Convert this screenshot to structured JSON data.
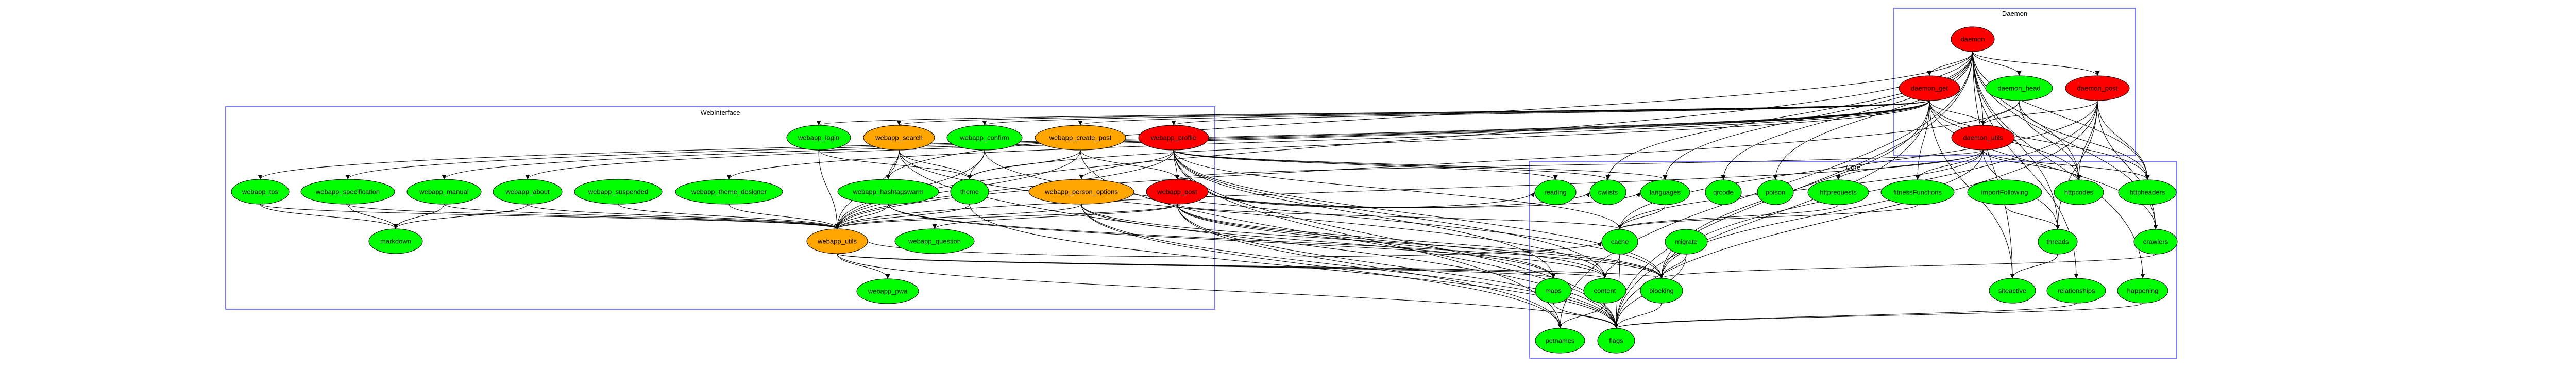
{
  "colors": {
    "red": "#ff0000",
    "green": "#00ff00",
    "orange": "#ffa500",
    "cluster_border": "#5050ff",
    "edge": "#000000"
  },
  "clusters": [
    {
      "id": "daemon",
      "label": "Daemon"
    },
    {
      "id": "web",
      "label": "WebInterface"
    },
    {
      "id": "core",
      "label": "Core"
    }
  ],
  "nodes": [
    {
      "id": "daemon",
      "label": "daemon",
      "fill": "red",
      "cluster": "daemon"
    },
    {
      "id": "daemon_get",
      "label": "daemon_get",
      "fill": "red",
      "cluster": "daemon"
    },
    {
      "id": "daemon_head",
      "label": "daemon_head",
      "fill": "green",
      "cluster": "daemon"
    },
    {
      "id": "daemon_post",
      "label": "daemon_post",
      "fill": "red",
      "cluster": "daemon"
    },
    {
      "id": "daemon_utils",
      "label": "daemon_utils",
      "fill": "red",
      "cluster": "daemon"
    },
    {
      "id": "webapp_login",
      "label": "webapp_login",
      "fill": "green",
      "cluster": "web"
    },
    {
      "id": "webapp_search",
      "label": "webapp_search",
      "fill": "orange",
      "cluster": "web"
    },
    {
      "id": "webapp_confirm",
      "label": "webapp_confirm",
      "fill": "green",
      "cluster": "web"
    },
    {
      "id": "webapp_create_post",
      "label": "webapp_create_post",
      "fill": "orange",
      "cluster": "web"
    },
    {
      "id": "webapp_profile",
      "label": "webapp_profile",
      "fill": "red",
      "cluster": "web"
    },
    {
      "id": "webapp_tos",
      "label": "webapp_tos",
      "fill": "green",
      "cluster": "web"
    },
    {
      "id": "webapp_specification",
      "label": "webapp_specification",
      "fill": "green",
      "cluster": "web"
    },
    {
      "id": "webapp_manual",
      "label": "webapp_manual",
      "fill": "green",
      "cluster": "web"
    },
    {
      "id": "webapp_about",
      "label": "webapp_about",
      "fill": "green",
      "cluster": "web"
    },
    {
      "id": "webapp_suspended",
      "label": "webapp_suspended",
      "fill": "green",
      "cluster": "web"
    },
    {
      "id": "webapp_theme_designer",
      "label": "webapp_theme_designer",
      "fill": "green",
      "cluster": "web"
    },
    {
      "id": "webapp_hashtagswarm",
      "label": "webapp_hashtagswarm",
      "fill": "green",
      "cluster": "web"
    },
    {
      "id": "theme",
      "label": "theme",
      "fill": "green",
      "cluster": "web"
    },
    {
      "id": "webapp_person_options",
      "label": "webapp_person_options",
      "fill": "orange",
      "cluster": "web"
    },
    {
      "id": "webapp_post",
      "label": "webapp_post",
      "fill": "red",
      "cluster": "web"
    },
    {
      "id": "markdown",
      "label": "markdown",
      "fill": "green",
      "cluster": "web"
    },
    {
      "id": "webapp_utils",
      "label": "webapp_utils",
      "fill": "orange",
      "cluster": "web"
    },
    {
      "id": "webapp_question",
      "label": "webapp_question",
      "fill": "green",
      "cluster": "web"
    },
    {
      "id": "webapp_pwa",
      "label": "webapp_pwa",
      "fill": "green",
      "cluster": "web"
    },
    {
      "id": "reading",
      "label": "reading",
      "fill": "green",
      "cluster": "core"
    },
    {
      "id": "cwlists",
      "label": "cwlists",
      "fill": "green",
      "cluster": "core"
    },
    {
      "id": "languages",
      "label": "languages",
      "fill": "green",
      "cluster": "core"
    },
    {
      "id": "qrcode",
      "label": "qrcode",
      "fill": "green",
      "cluster": "core"
    },
    {
      "id": "poison",
      "label": "poison",
      "fill": "green",
      "cluster": "core"
    },
    {
      "id": "httprequests",
      "label": "httprequests",
      "fill": "green",
      "cluster": "core"
    },
    {
      "id": "fitnessFunctions",
      "label": "fitnessFunctions",
      "fill": "green",
      "cluster": "core"
    },
    {
      "id": "importFollowing",
      "label": "importFollowing",
      "fill": "green",
      "cluster": "core"
    },
    {
      "id": "httpcodes",
      "label": "httpcodes",
      "fill": "green",
      "cluster": "core"
    },
    {
      "id": "httpheaders",
      "label": "httpheaders",
      "fill": "green",
      "cluster": "core"
    },
    {
      "id": "cache",
      "label": "cache",
      "fill": "green",
      "cluster": "core"
    },
    {
      "id": "migrate",
      "label": "migrate",
      "fill": "green",
      "cluster": "core"
    },
    {
      "id": "threads",
      "label": "threads",
      "fill": "green",
      "cluster": "core"
    },
    {
      "id": "crawlers",
      "label": "crawlers",
      "fill": "green",
      "cluster": "core"
    },
    {
      "id": "maps",
      "label": "maps",
      "fill": "green",
      "cluster": "core"
    },
    {
      "id": "content",
      "label": "content",
      "fill": "green",
      "cluster": "core"
    },
    {
      "id": "blocking",
      "label": "blocking",
      "fill": "green",
      "cluster": "core"
    },
    {
      "id": "siteactive",
      "label": "siteactive",
      "fill": "green",
      "cluster": "core"
    },
    {
      "id": "relationships",
      "label": "relationships",
      "fill": "green",
      "cluster": "core"
    },
    {
      "id": "happening",
      "label": "happening",
      "fill": "green",
      "cluster": "core"
    },
    {
      "id": "petnames",
      "label": "petnames",
      "fill": "green",
      "cluster": "core"
    },
    {
      "id": "flags",
      "label": "flags",
      "fill": "green",
      "cluster": "core"
    }
  ],
  "edges": [
    [
      "daemon",
      "daemon_get"
    ],
    [
      "daemon",
      "daemon_head"
    ],
    [
      "daemon",
      "daemon_post"
    ],
    [
      "daemon",
      "daemon_utils"
    ],
    [
      "daemon",
      "webapp_utils"
    ],
    [
      "daemon",
      "cwlists"
    ],
    [
      "daemon",
      "languages"
    ],
    [
      "daemon",
      "qrcode"
    ],
    [
      "daemon",
      "poison"
    ],
    [
      "daemon",
      "httpheaders"
    ],
    [
      "daemon",
      "httpcodes"
    ],
    [
      "daemon",
      "threads"
    ],
    [
      "daemon",
      "crawlers"
    ],
    [
      "daemon",
      "siteactive"
    ],
    [
      "daemon",
      "relationships"
    ],
    [
      "daemon",
      "happening"
    ],
    [
      "daemon",
      "flags"
    ],
    [
      "daemon",
      "petnames"
    ],
    [
      "daemon",
      "webapp_hashtagswarm"
    ],
    [
      "daemon_get",
      "daemon_utils"
    ],
    [
      "daemon_get",
      "webapp_tos"
    ],
    [
      "daemon_get",
      "webapp_specification"
    ],
    [
      "daemon_get",
      "webapp_manual"
    ],
    [
      "daemon_get",
      "webapp_about"
    ],
    [
      "daemon_get",
      "webapp_theme_designer"
    ],
    [
      "daemon_get",
      "webapp_login"
    ],
    [
      "daemon_get",
      "webapp_search"
    ],
    [
      "daemon_get",
      "webapp_confirm"
    ],
    [
      "daemon_get",
      "webapp_create_post"
    ],
    [
      "daemon_get",
      "webapp_profile"
    ],
    [
      "daemon_get",
      "theme"
    ],
    [
      "daemon_get",
      "httpcodes"
    ],
    [
      "daemon_get",
      "httpheaders"
    ],
    [
      "daemon_get",
      "fitnessFunctions"
    ],
    [
      "daemon_get",
      "flags"
    ],
    [
      "daemon_get",
      "crawlers"
    ],
    [
      "daemon_get",
      "blocking"
    ],
    [
      "daemon_get",
      "siteactive"
    ],
    [
      "daemon_head",
      "daemon_utils"
    ],
    [
      "daemon_head",
      "httpcodes"
    ],
    [
      "daemon_head",
      "httpheaders"
    ],
    [
      "daemon_head",
      "webapp_utils"
    ],
    [
      "daemon_post",
      "daemon_utils"
    ],
    [
      "daemon_post",
      "httpcodes"
    ],
    [
      "daemon_post",
      "httpheaders"
    ],
    [
      "daemon_post",
      "threads"
    ],
    [
      "daemon_post",
      "crawlers"
    ],
    [
      "daemon_post",
      "blocking"
    ],
    [
      "daemon_post",
      "cache"
    ],
    [
      "daemon_post",
      "flags"
    ],
    [
      "daemon_utils",
      "webapp_post"
    ],
    [
      "daemon_utils",
      "httprequests"
    ],
    [
      "daemon_utils",
      "fitnessFunctions"
    ],
    [
      "daemon_utils",
      "httpcodes"
    ],
    [
      "daemon_utils",
      "httpheaders"
    ],
    [
      "daemon_utils",
      "blocking"
    ],
    [
      "daemon_utils",
      "cache"
    ],
    [
      "daemon_utils",
      "webapp_utils"
    ],
    [
      "daemon_utils",
      "threads"
    ],
    [
      "webapp_tos",
      "markdown"
    ],
    [
      "webapp_tos",
      "webapp_utils"
    ],
    [
      "webapp_specification",
      "markdown"
    ],
    [
      "webapp_specification",
      "webapp_utils"
    ],
    [
      "webapp_manual",
      "markdown"
    ],
    [
      "webapp_manual",
      "webapp_utils"
    ],
    [
      "webapp_about",
      "markdown"
    ],
    [
      "webapp_about",
      "webapp_utils"
    ],
    [
      "webapp_suspended",
      "webapp_utils"
    ],
    [
      "webapp_theme_designer",
      "webapp_utils"
    ],
    [
      "webapp_hashtagswarm",
      "webapp_utils"
    ],
    [
      "webapp_hashtagswarm",
      "blocking"
    ],
    [
      "webapp_hashtagswarm",
      "content"
    ],
    [
      "theme",
      "webapp_utils"
    ],
    [
      "theme",
      "flags"
    ],
    [
      "webapp_login",
      "webapp_utils"
    ],
    [
      "webapp_login",
      "theme"
    ],
    [
      "webapp_search",
      "webapp_hashtagswarm"
    ],
    [
      "webapp_search",
      "webapp_utils"
    ],
    [
      "webapp_search",
      "theme"
    ],
    [
      "webapp_search",
      "flags"
    ],
    [
      "webapp_search",
      "content"
    ],
    [
      "webapp_confirm",
      "webapp_utils"
    ],
    [
      "webapp_confirm",
      "theme"
    ],
    [
      "webapp_confirm",
      "blocking"
    ],
    [
      "webapp_create_post",
      "theme"
    ],
    [
      "webapp_create_post",
      "webapp_post"
    ],
    [
      "webapp_create_post",
      "webapp_utils"
    ],
    [
      "webapp_create_post",
      "flags"
    ],
    [
      "webapp_profile",
      "webapp_post"
    ],
    [
      "webapp_profile",
      "webapp_person_options"
    ],
    [
      "webapp_profile",
      "webapp_utils"
    ],
    [
      "webapp_profile",
      "reading"
    ],
    [
      "webapp_profile",
      "cwlists"
    ],
    [
      "webapp_profile",
      "languages"
    ],
    [
      "webapp_profile",
      "cache"
    ],
    [
      "webapp_profile",
      "maps"
    ],
    [
      "webapp_profile",
      "content"
    ],
    [
      "webapp_profile",
      "blocking"
    ],
    [
      "webapp_profile",
      "flags"
    ],
    [
      "webapp_profile",
      "petnames"
    ],
    [
      "webapp_person_options",
      "webapp_utils"
    ],
    [
      "webapp_person_options",
      "maps"
    ],
    [
      "webapp_person_options",
      "flags"
    ],
    [
      "webapp_person_options",
      "petnames"
    ],
    [
      "webapp_person_options",
      "blocking"
    ],
    [
      "webapp_post",
      "webapp_question"
    ],
    [
      "webapp_post",
      "webapp_utils"
    ],
    [
      "webapp_post",
      "languages"
    ],
    [
      "webapp_post",
      "cwlists"
    ],
    [
      "webapp_post",
      "reading"
    ],
    [
      "webapp_post",
      "cache"
    ],
    [
      "webapp_post",
      "maps"
    ],
    [
      "webapp_post",
      "content"
    ],
    [
      "webapp_post",
      "blocking"
    ],
    [
      "webapp_post",
      "flags"
    ],
    [
      "webapp_post",
      "petnames"
    ],
    [
      "webapp_utils",
      "webapp_pwa"
    ],
    [
      "webapp_utils",
      "flags"
    ],
    [
      "webapp_utils",
      "content"
    ],
    [
      "webapp_utils",
      "blocking"
    ],
    [
      "webapp_utils",
      "cache"
    ],
    [
      "webapp_utils",
      "maps"
    ],
    [
      "languages",
      "cache"
    ],
    [
      "importFollowing",
      "threads"
    ],
    [
      "cache",
      "content"
    ],
    [
      "cache",
      "flags"
    ],
    [
      "migrate",
      "blocking"
    ],
    [
      "migrate",
      "flags"
    ],
    [
      "maps",
      "flags"
    ],
    [
      "content",
      "petnames"
    ],
    [
      "content",
      "flags"
    ],
    [
      "blocking",
      "flags"
    ],
    [
      "threads",
      "siteactive"
    ],
    [
      "crawlers",
      "blocking"
    ],
    [
      "relationships",
      "flags"
    ],
    [
      "happening",
      "flags"
    ],
    [
      "httprequests",
      "cache"
    ],
    [
      "fitnessFunctions",
      "cache"
    ]
  ]
}
